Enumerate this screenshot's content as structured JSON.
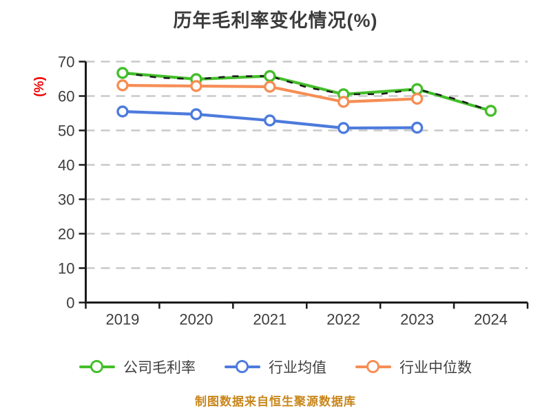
{
  "title": "历年毛利率变化情况(%)",
  "y_axis_unit_label": "(%)",
  "footer_source_note": "制图数据来自恒生聚源数据库",
  "colors": {
    "company_line": "#44be2b",
    "industry_avg_line": "#4d7bdc",
    "industry_median_line": "#f68e55",
    "company_overlay_dash": "#1c1c1c",
    "grid_line": "#c9c9c9",
    "axis_line": "#1a1a1a",
    "tick_label": "#3d3d3d",
    "title_text": "#3c3c3c",
    "y_unit_label": "#ee0000",
    "footer_text": "#c8861b",
    "marker_fill": "#ffffff"
  },
  "chart_data": {
    "type": "line",
    "title": "历年毛利率变化情况(%)",
    "ylabel": "(%)",
    "categories": [
      "2019",
      "2020",
      "2021",
      "2022",
      "2023",
      "2024"
    ],
    "series": [
      {
        "name": "公司毛利率",
        "color": "#44be2b",
        "values": [
          66.7,
          64.9,
          65.8,
          60.5,
          62.0,
          55.7
        ],
        "overlay": "dark-dashed"
      },
      {
        "name": "行业均值",
        "color": "#4d7bdc",
        "values": [
          55.5,
          54.7,
          52.9,
          50.7,
          50.8,
          null
        ]
      },
      {
        "name": "行业中位数",
        "color": "#f68e55",
        "values": [
          63.1,
          62.9,
          62.7,
          58.3,
          59.2,
          null
        ]
      }
    ],
    "ylim": [
      0,
      70
    ],
    "yticks": [
      0,
      10,
      20,
      30,
      40,
      50,
      60,
      70
    ],
    "grid": "horizontal-dashed",
    "legend_position": "bottom",
    "source_note": "制图数据来自恒生聚源数据库"
  },
  "legend": {
    "items": [
      {
        "label": "公司毛利率"
      },
      {
        "label": "行业均值"
      },
      {
        "label": "行业中位数"
      }
    ]
  }
}
